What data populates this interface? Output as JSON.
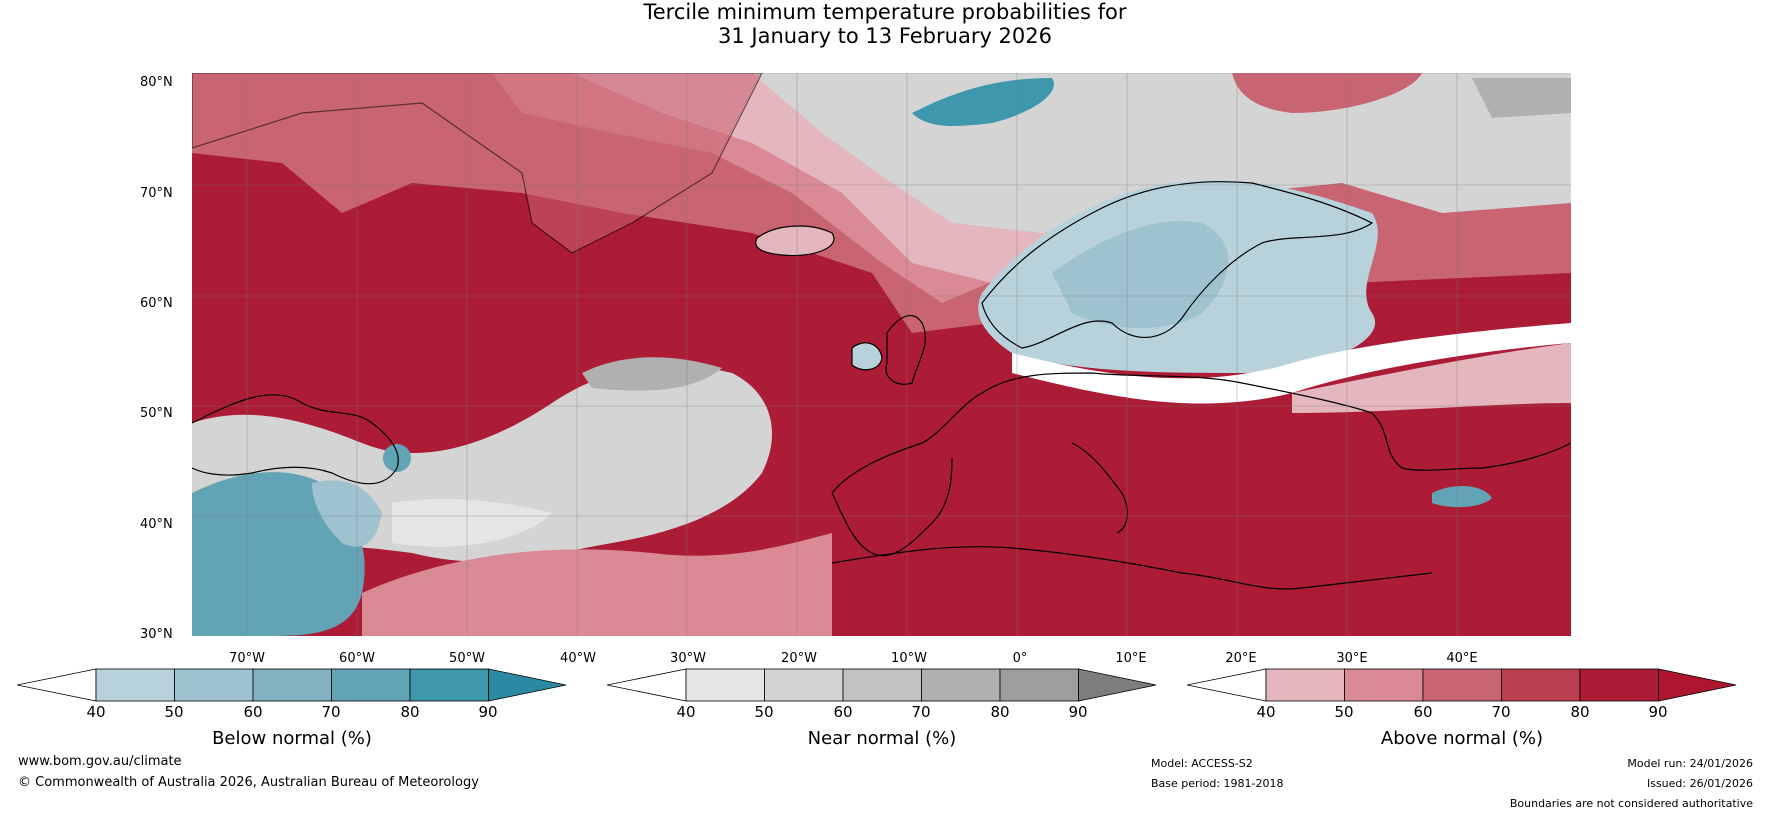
{
  "title": {
    "line1": "Tercile minimum temperature probabilities for",
    "line2": "31 January to 13 February 2026"
  },
  "map": {
    "lat_labels": [
      "80°N",
      "70°N",
      "60°N",
      "50°N",
      "40°N",
      "30°N"
    ],
    "lon_labels": [
      "70°W",
      "60°W",
      "50°W",
      "40°W",
      "30°W",
      "20°W",
      "10°W",
      "0°",
      "10°E",
      "20°E",
      "30°E",
      "40°E"
    ],
    "colors": {
      "above": [
        "#e4b6bd",
        "#d98a95",
        "#c96472",
        "#bb3f51",
        "#ad1c37"
      ],
      "below": [
        "#b8d2db",
        "#9ec3cf",
        "#82b1c2",
        "#62a3b6",
        "#3e97ad"
      ],
      "near": [
        "#e5e5e5",
        "#d4d4d4",
        "#c2c2c2",
        "#b0b0b0",
        "#9e9e9e"
      ],
      "land_line": "#000000",
      "border_line": "#808080",
      "grid_line": "#888888"
    }
  },
  "colorbars": {
    "below": {
      "label": "Below normal (%)",
      "ticks": [
        "40",
        "50",
        "60",
        "70",
        "80",
        "90"
      ],
      "colors": [
        "#b8d2db",
        "#9ec3cf",
        "#82b1c2",
        "#62a3b6",
        "#3e97ad"
      ],
      "extend_color": "#2b8aa3"
    },
    "near": {
      "label": "Near normal (%)",
      "ticks": [
        "40",
        "50",
        "60",
        "70",
        "80",
        "90"
      ],
      "colors": [
        "#e5e5e5",
        "#d4d4d4",
        "#c2c2c2",
        "#b0b0b0",
        "#9e9e9e"
      ],
      "extend_color": "#7d7d7d"
    },
    "above": {
      "label": "Above normal (%)",
      "ticks": [
        "40",
        "50",
        "60",
        "70",
        "80",
        "90"
      ],
      "colors": [
        "#e4b6bd",
        "#d98a95",
        "#c96472",
        "#bb3f51",
        "#ad1c37"
      ],
      "extend_color": "#b01530"
    }
  },
  "footer": {
    "url": "www.bom.gov.au/climate",
    "copyright": "© Commonwealth of Australia 2026, Australian Bureau of Meteorology",
    "model": "Model: ACCESS-S2",
    "base_period": "Base period: 1981-2018",
    "model_run": "Model run: 24/01/2026",
    "issued": "Issued: 26/01/2026",
    "disclaimer": "Boundaries are not considered authoritative"
  }
}
